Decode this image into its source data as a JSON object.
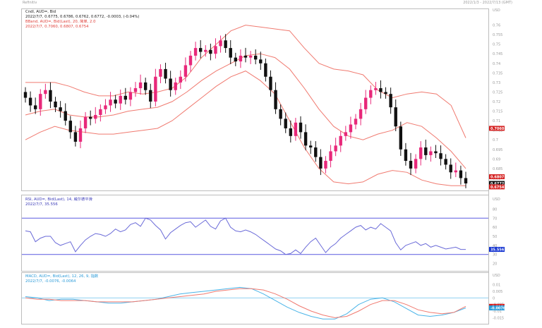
{
  "app": {
    "title": "Refinitiv",
    "header_right": "2022/1/3 - 2022/7/13 (GMT)"
  },
  "panels": {
    "price": {
      "legend": [
        {
          "text": "Cndl, AUD=, Bid",
          "color": "#1a1a1a"
        },
        {
          "text": "2022/7/7, 0.6775, 0.6786, 0.6762, 0.6772, -0.0003, (-0.04%)",
          "color": "#1a1a1a"
        },
        {
          "text": "BBand, AUD=, Bid(Last), 20, 简单, 2.0",
          "color": "#e0403a"
        },
        {
          "text": "2022/7/7, 0.7060, 0.6807, 0.6754",
          "color": "#e0403a"
        }
      ],
      "axis_unit": "USD",
      "axis_labels": [
        "0.76",
        "0.755",
        "0.75",
        "0.745",
        "0.74",
        "0.735",
        "0.73",
        "0.725",
        "0.72",
        "0.715",
        "0.71",
        "0.705",
        "0.7",
        "0.695",
        "0.69",
        "0.685",
        "0.68"
      ],
      "badges": [
        {
          "label": "0.7060",
          "color": "#d42020",
          "value": 0.706
        },
        {
          "label": "0.6807",
          "color": "#d42020",
          "value": 0.6807
        },
        {
          "label": "0.6772",
          "color": "#111111",
          "value": 0.6772
        },
        {
          "label": "0.6754",
          "color": "#d42020",
          "value": 0.6754
        }
      ]
    },
    "rsi": {
      "legend": [
        {
          "text": "RSI, AUD=, Bid(Last), 14, 威尔德平滑",
          "color": "#3a3ab8"
        },
        {
          "text": "2022/7/7, 35.556",
          "color": "#3a3ab8"
        }
      ],
      "axis_unit": "USD",
      "axis_labels": [
        "80",
        "70",
        "60",
        "50",
        "40",
        "30",
        "20"
      ],
      "badges": [
        {
          "label": "35.556",
          "color": "#1030d0",
          "value": 35.556
        }
      ]
    },
    "macd": {
      "legend": [
        {
          "text": "MACD, AUD=, Bid(Last), 12, 26, 9, 指数",
          "color": "#2a9ad8"
        },
        {
          "text": "2022/7/7, -0.0076, -0.0064",
          "color": "#2a9ad8"
        }
      ],
      "axis_unit": "USD",
      "axis_labels": [
        "0.01",
        "0.005",
        "0",
        "-0.005",
        "-0.01",
        "-0.015"
      ],
      "badges": [
        {
          "label": "-0.0064",
          "color": "#d42020",
          "value": -0.0064
        },
        {
          "label": "-0.0076",
          "color": "#2a9ad8",
          "value": -0.0076
        }
      ]
    }
  },
  "chart_data": [
    {
      "type": "candlestick",
      "title": "Cndl, AUD=, Bid",
      "ylim": [
        0.675,
        0.765
      ],
      "up_color": "#e8287a",
      "down_color": "#111111",
      "closes": [
        0.722,
        0.718,
        0.716,
        0.724,
        0.726,
        0.72,
        0.717,
        0.715,
        0.71,
        0.704,
        0.699,
        0.706,
        0.712,
        0.711,
        0.713,
        0.716,
        0.718,
        0.721,
        0.719,
        0.723,
        0.721,
        0.725,
        0.727,
        0.73,
        0.726,
        0.72,
        0.733,
        0.737,
        0.732,
        0.726,
        0.73,
        0.733,
        0.739,
        0.744,
        0.748,
        0.746,
        0.747,
        0.745,
        0.749,
        0.752,
        0.748,
        0.743,
        0.741,
        0.744,
        0.743,
        0.744,
        0.742,
        0.74,
        0.733,
        0.726,
        0.716,
        0.711,
        0.706,
        0.702,
        0.709,
        0.704,
        0.697,
        0.696,
        0.691,
        0.685,
        0.689,
        0.694,
        0.697,
        0.702,
        0.704,
        0.708,
        0.711,
        0.716,
        0.722,
        0.726,
        0.727,
        0.725,
        0.724,
        0.717,
        0.707,
        0.695,
        0.689,
        0.685,
        0.69,
        0.696,
        0.692,
        0.694,
        0.693,
        0.69,
        0.687,
        0.683,
        0.684,
        0.68,
        0.6772
      ]
    },
    {
      "type": "line",
      "title": "BBand, AUD=, Bid(Last), 20, 简单, 2.0",
      "series": [
        {
          "name": "upper",
          "values": [
            0.73,
            0.73,
            0.73,
            0.728,
            0.725,
            0.723,
            0.723,
            0.725,
            0.724,
            0.725,
            0.727,
            0.733,
            0.743,
            0.75,
            0.757,
            0.76,
            0.759,
            0.758,
            0.757,
            0.748,
            0.74,
            0.737,
            0.736,
            0.734,
            0.726,
            0.722,
            0.724,
            0.725,
            0.724,
            0.718,
            0.701
          ]
        },
        {
          "name": "middle",
          "values": [
            0.713,
            0.715,
            0.716,
            0.713,
            0.712,
            0.712,
            0.713,
            0.715,
            0.716,
            0.717,
            0.72,
            0.725,
            0.731,
            0.736,
            0.74,
            0.744,
            0.745,
            0.743,
            0.737,
            0.727,
            0.716,
            0.707,
            0.702,
            0.7,
            0.703,
            0.705,
            0.709,
            0.707,
            0.701,
            0.694,
            0.685
          ]
        },
        {
          "name": "lower",
          "values": [
            0.7,
            0.704,
            0.707,
            0.705,
            0.704,
            0.703,
            0.703,
            0.704,
            0.705,
            0.706,
            0.71,
            0.716,
            0.722,
            0.728,
            0.733,
            0.736,
            0.731,
            0.724,
            0.71,
            0.696,
            0.685,
            0.678,
            0.677,
            0.678,
            0.682,
            0.684,
            0.683,
            0.679,
            0.677,
            0.676,
            0.676
          ]
        }
      ]
    },
    {
      "type": "line",
      "title": "RSI, AUD=, Bid(Last), 14, 威尔德平滑",
      "ylim": [
        15,
        85
      ],
      "reference_lines": [
        70,
        30
      ],
      "values": [
        56,
        55,
        44,
        48,
        50,
        50,
        43,
        40,
        42,
        44,
        33,
        40,
        46,
        50,
        53,
        52,
        50,
        53,
        58,
        55,
        57,
        63,
        65,
        61,
        70,
        68,
        62,
        57,
        47,
        54,
        58,
        62,
        65,
        66,
        60,
        64,
        68,
        61,
        58,
        67,
        70,
        60,
        56,
        55,
        57,
        55,
        52,
        48,
        44,
        40,
        36,
        34,
        30,
        31,
        35,
        31,
        38,
        44,
        48,
        40,
        32,
        38,
        42,
        48,
        52,
        56,
        60,
        62,
        57,
        60,
        58,
        64,
        60,
        56,
        43,
        35,
        40,
        42,
        44,
        40,
        42,
        38,
        40,
        38,
        36,
        37,
        38,
        35.5,
        35.556
      ]
    },
    {
      "type": "line",
      "title": "MACD, AUD=, Bid(Last), 12, 26, 9, 指数",
      "ylim": [
        -0.018,
        0.013
      ],
      "zero_line": 0,
      "series": [
        {
          "name": "MACD",
          "values": [
            0.001,
            0.0,
            -0.002,
            -0.001,
            -0.001,
            -0.002,
            -0.003,
            -0.004,
            -0.004,
            -0.003,
            -0.002,
            -0.001,
            0.001,
            0.003,
            0.004,
            0.005,
            0.006,
            0.007,
            0.008,
            0.007,
            0.003,
            -0.002,
            -0.007,
            -0.011,
            -0.014,
            -0.016,
            -0.016,
            -0.012,
            -0.005,
            -0.001,
            0.0,
            -0.003,
            -0.008,
            -0.013,
            -0.014,
            -0.013,
            -0.011,
            -0.0076
          ]
        },
        {
          "name": "Signal",
          "values": [
            0.0,
            -0.001,
            -0.001,
            -0.002,
            -0.002,
            -0.002,
            -0.003,
            -0.003,
            -0.003,
            -0.003,
            -0.002,
            -0.001,
            0.0,
            0.001,
            0.002,
            0.003,
            0.005,
            0.006,
            0.007,
            0.007,
            0.006,
            0.003,
            -0.001,
            -0.006,
            -0.01,
            -0.013,
            -0.015,
            -0.014,
            -0.01,
            -0.005,
            -0.002,
            -0.002,
            -0.005,
            -0.009,
            -0.011,
            -0.012,
            -0.011,
            -0.0064
          ]
        }
      ]
    }
  ]
}
